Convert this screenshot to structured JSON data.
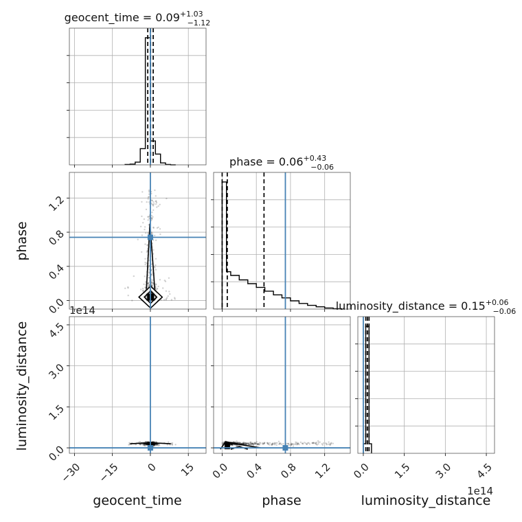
{
  "chart_data": {
    "type": "scatter",
    "figure": "corner",
    "parameters": [
      "geocent_time",
      "phase",
      "luminosity_distance"
    ],
    "axis_labels": {
      "geocent_time": "geocent_time",
      "phase": "phase",
      "luminosity_distance": "luminosity_distance"
    },
    "titles": {
      "geocent_time": {
        "name": "geocent_time",
        "median": "0.09",
        "plus": "+1.03",
        "minus": "−1.12"
      },
      "phase": {
        "name": "phase",
        "median": "0.06",
        "plus": "+0.43",
        "minus": "−0.06"
      },
      "luminosity_distance": {
        "name": "luminosity_distance",
        "median": "0.15",
        "plus": "+0.06",
        "minus": "−0.06"
      }
    },
    "ranges": {
      "geocent_time": [
        -32,
        22
      ],
      "phase": [
        -0.1,
        1.5
      ],
      "luminosity_distance": [
        -0.2,
        4.8
      ]
    },
    "ticks": {
      "geocent_time": {
        "values": [
          -30,
          -15,
          0,
          15
        ],
        "labels": [
          "−30",
          "−15",
          "0",
          "15"
        ]
      },
      "phase": {
        "values": [
          0.0,
          0.4,
          0.8,
          1.2
        ],
        "labels": [
          "0.0",
          "0.4",
          "0.8",
          "1.2"
        ]
      },
      "luminosity_distance": {
        "values": [
          0.0,
          1.5,
          3.0,
          4.5
        ],
        "labels": [
          "0.0",
          "1.5",
          "3.0",
          "4.5"
        ]
      }
    },
    "offset_text": "1e14",
    "truths": {
      "geocent_time": 0.0,
      "phase": 0.74,
      "luminosity_distance": 0.0
    },
    "quantiles": {
      "geocent_time": [
        -1.03,
        0.09,
        1.12
      ],
      "phase": [
        0.0,
        0.06,
        0.49
      ],
      "luminosity_distance": [
        0.09,
        0.15,
        0.21
      ]
    },
    "histograms": {
      "geocent_time": {
        "bin_edges": [
          -10,
          -8,
          -6,
          -4,
          -2,
          0,
          2,
          4,
          6,
          8,
          10
        ],
        "counts": [
          0.01,
          0.02,
          0.07,
          0.42,
          3.3,
          0.62,
          0.28,
          0.05,
          0.01,
          0.0
        ]
      },
      "phase": {
        "bin_edges": [
          0.0,
          0.05,
          0.1,
          0.2,
          0.3,
          0.4,
          0.5,
          0.6,
          0.7,
          0.8,
          0.9,
          1.0,
          1.1,
          1.2,
          1.3,
          1.4
        ],
        "counts": [
          3.4,
          1.0,
          0.9,
          0.78,
          0.68,
          0.58,
          0.48,
          0.38,
          0.3,
          0.22,
          0.15,
          0.1,
          0.06,
          0.03,
          0.01
        ]
      },
      "luminosity_distance": {
        "bin_edges": [
          0.0,
          0.09,
          0.21,
          0.3
        ],
        "counts": [
          0.3,
          4.0,
          0.3
        ]
      }
    },
    "grid": true
  }
}
